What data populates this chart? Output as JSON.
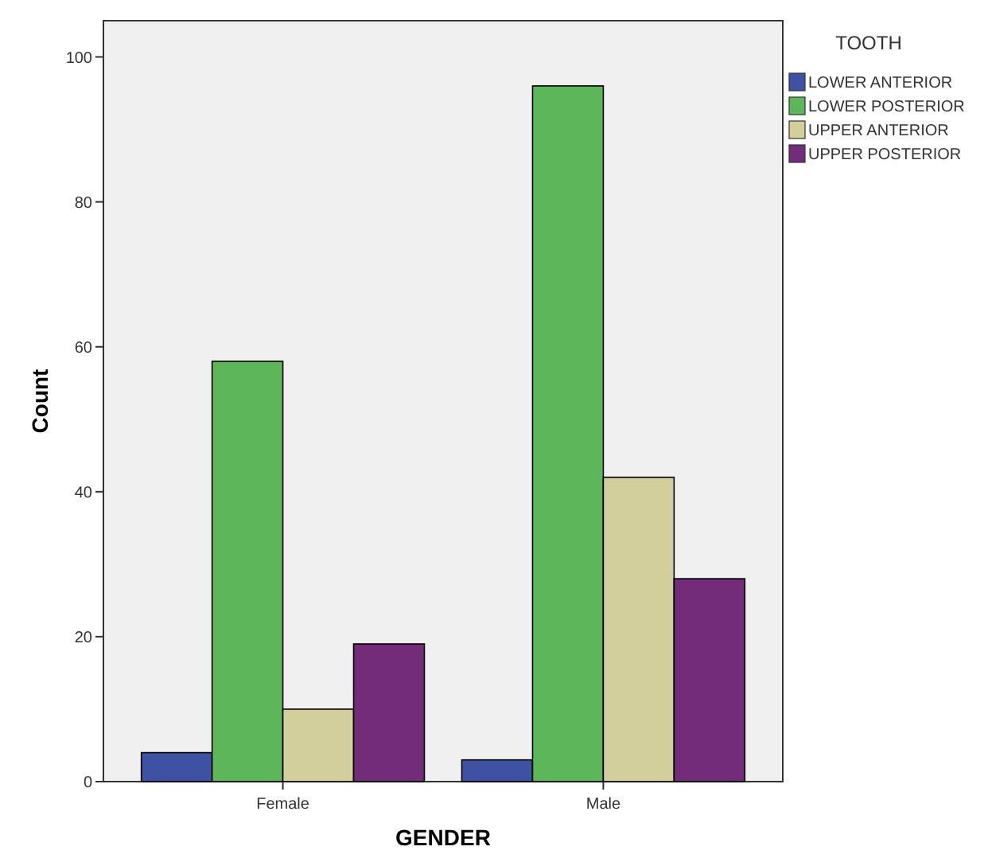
{
  "chart_data": {
    "type": "bar",
    "xlabel": "GENDER",
    "ylabel": "Count",
    "legend_title": "TOOTH",
    "legend": "right",
    "categories": [
      "Female",
      "Male"
    ],
    "ylim": [
      0,
      105
    ],
    "yticks": [
      0,
      20,
      40,
      60,
      80,
      100
    ],
    "grid": false,
    "series": [
      {
        "name": "LOWER ANTERIOR",
        "color": "#3f51a3",
        "values": [
          4,
          3
        ]
      },
      {
        "name": "LOWER POSTERIOR",
        "color": "#5db75a",
        "values": [
          58,
          96
        ]
      },
      {
        "name": "UPPER ANTERIOR",
        "color": "#d3cf9c",
        "values": [
          10,
          42
        ]
      },
      {
        "name": "UPPER POSTERIOR",
        "color": "#722c7a",
        "values": [
          19,
          28
        ]
      }
    ]
  }
}
